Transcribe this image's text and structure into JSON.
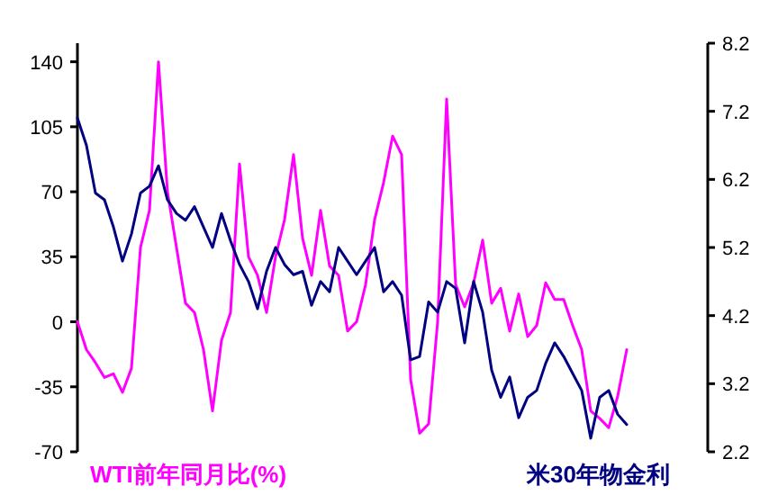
{
  "chart_data": {
    "type": "line",
    "categories": [
      null,
      null,
      null,
      null,
      null,
      null,
      null,
      null,
      null,
      null,
      null,
      null,
      null,
      null,
      null,
      null,
      null,
      null,
      null,
      null,
      null,
      null,
      null,
      null,
      null,
      null,
      null,
      null,
      null,
      null,
      null,
      null,
      null,
      null,
      null,
      null,
      null,
      null,
      null,
      null,
      null,
      null,
      null,
      null,
      null,
      null,
      null,
      null,
      null,
      null,
      null,
      null,
      null,
      null,
      null,
      null,
      null,
      null,
      null,
      null,
      null,
      null,
      null,
      null,
      null,
      null,
      null,
      null,
      null,
      null,
      null
    ],
    "series": [
      {
        "name": "WTI前年同月比(%)",
        "color": "#ff00ff",
        "values": [
          0,
          -15,
          -22,
          -30,
          -28,
          -38,
          -25,
          40,
          60,
          140,
          70,
          40,
          10,
          5,
          -15,
          -48,
          -10,
          5,
          85,
          35,
          25,
          5,
          35,
          55,
          90,
          45,
          25,
          60,
          30,
          25,
          -5,
          0,
          20,
          55,
          75,
          100,
          90,
          -31,
          -60,
          -55,
          0,
          120,
          20,
          8,
          21,
          44,
          10,
          18,
          -5,
          15,
          -8,
          -2,
          21,
          12,
          12,
          -2,
          -15,
          -48,
          -52,
          -57,
          -40,
          -15,
          null,
          null,
          null,
          null,
          null,
          null,
          null,
          null,
          null
        ]
      },
      {
        "name": "米30年物金利",
        "color": "#000080",
        "axis": "y2",
        "values": [
          7.1,
          6.7,
          6.0,
          5.9,
          5.5,
          5.0,
          5.4,
          6.0,
          6.1,
          6.4,
          5.9,
          5.7,
          5.6,
          5.8,
          5.5,
          5.2,
          5.7,
          5.3,
          4.95,
          4.7,
          4.3,
          4.85,
          5.2,
          4.95,
          4.8,
          4.85,
          4.35,
          4.7,
          4.55,
          5.2,
          5.0,
          4.8,
          5.0,
          5.2,
          4.55,
          4.7,
          4.5,
          3.55,
          3.6,
          4.4,
          4.25,
          4.7,
          4.6,
          3.8,
          4.7,
          4.25,
          3.4,
          3.0,
          3.3,
          2.7,
          3.0,
          3.1,
          3.5,
          3.8,
          3.6,
          3.35,
          3.1,
          2.4,
          3.0,
          3.1,
          2.75,
          2.6,
          null,
          null,
          null,
          null,
          null,
          null,
          null,
          null,
          null
        ]
      }
    ],
    "ylim": [
      -70,
      150
    ],
    "yticks": [
      -70,
      -35,
      0,
      35,
      70,
      105,
      140
    ],
    "y2lim": [
      2.2,
      8.2
    ],
    "y2ticks": [
      2.2,
      3.2,
      4.2,
      5.2,
      6.2,
      7.2,
      8.2
    ],
    "legend": "bottom"
  }
}
